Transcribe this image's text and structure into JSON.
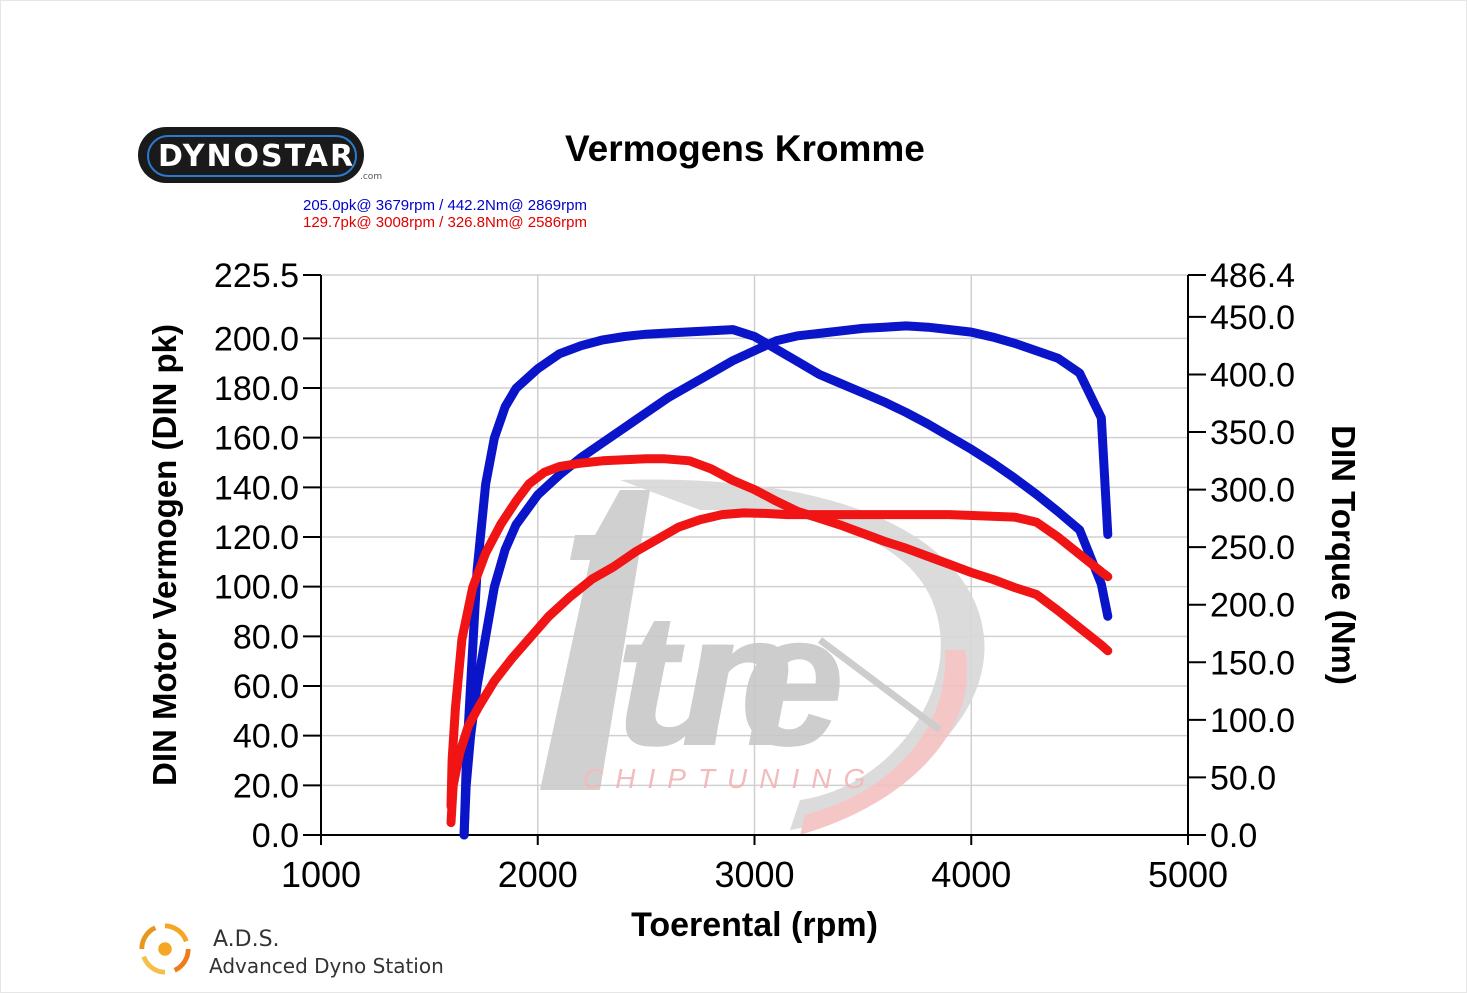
{
  "brand": {
    "logo_text": "DYNOSTAR",
    "logo_suffix": ".com"
  },
  "title": "Vermogens Kromme",
  "peaks": {
    "blue": "205.0pk@ 3679rpm / 442.2Nm@ 2869rpm",
    "red": "129.7pk@ 3008rpm / 326.8Nm@ 2586rpm"
  },
  "watermark": {
    "text": "tune",
    "sub": "CHIPTUNING"
  },
  "footer": {
    "title": "A.D.S.",
    "subtitle": "Advanced Dyno Station"
  },
  "colors": {
    "blue": "#0a14c8",
    "red": "#f01414",
    "grid": "#d0d0d0"
  },
  "chart_data": {
    "type": "line",
    "xlabel": "Toerental (rpm)",
    "ylabel": "DIN Motor Vermogen (DIN pk)",
    "y2label": "DIN Torque (Nm)",
    "xlim": [
      1000,
      5000
    ],
    "ylim": [
      0,
      225.5
    ],
    "y2lim": [
      0,
      486.4
    ],
    "x_ticks": [
      "1000",
      "2000",
      "3000",
      "4000",
      "5000"
    ],
    "y_ticks": [
      "0.0",
      "20.0",
      "40.0",
      "60.0",
      "80.0",
      "100.0",
      "120.0",
      "140.0",
      "160.0",
      "180.0",
      "200.0",
      "225.5"
    ],
    "y_tick_values": [
      0,
      20,
      40,
      60,
      80,
      100,
      120,
      140,
      160,
      180,
      200,
      225.5
    ],
    "y2_ticks": [
      "0.0",
      "50.0",
      "100.0",
      "150.0",
      "200.0",
      "250.0",
      "300.0",
      "350.0",
      "400.0",
      "450.0",
      "486.4"
    ],
    "y2_tick_values": [
      0,
      50,
      100,
      150,
      200,
      250,
      300,
      350,
      400,
      450,
      486.4
    ],
    "grid": true,
    "series": [
      {
        "color": "blue",
        "axis": "y",
        "x": [
          1660,
          1670,
          1690,
          1720,
          1760,
          1800,
          1850,
          1900,
          2000,
          2100,
          2200,
          2300,
          2400,
          2500,
          2600,
          2700,
          2800,
          2900,
          3000,
          3100,
          3200,
          3300,
          3400,
          3500,
          3600,
          3700,
          3800,
          3900,
          4000,
          4100,
          4200,
          4300,
          4400,
          4500,
          4600,
          4630
        ],
        "y": [
          0,
          20,
          40,
          60,
          80,
          100,
          115,
          125,
          137,
          145,
          152,
          158,
          164,
          170,
          176,
          181,
          186,
          191,
          195,
          199,
          201,
          202,
          203,
          204,
          204.5,
          205,
          204.5,
          203.5,
          202.5,
          200.5,
          198,
          195,
          192,
          186,
          168,
          121
        ]
      },
      {
        "color": "blue",
        "axis": "y2",
        "x": [
          1660,
          1670,
          1690,
          1720,
          1760,
          1800,
          1850,
          1900,
          2000,
          2100,
          2200,
          2300,
          2400,
          2500,
          2600,
          2700,
          2800,
          2900,
          3000,
          3100,
          3200,
          3300,
          3400,
          3500,
          3600,
          3700,
          3800,
          3900,
          4000,
          4100,
          4200,
          4300,
          4400,
          4500,
          4600,
          4630
        ],
        "y": [
          0,
          60,
          130,
          230,
          305,
          345,
          372,
          388,
          405,
          418,
          425,
          430,
          433,
          435,
          436,
          437,
          438,
          439,
          433,
          422,
          411,
          400,
          392,
          384,
          376,
          367,
          357,
          346,
          335,
          323,
          310,
          296,
          281,
          265,
          218,
          190
        ]
      },
      {
        "color": "red",
        "axis": "y",
        "x": [
          1600,
          1610,
          1640,
          1680,
          1730,
          1800,
          1880,
          1960,
          2050,
          2150,
          2250,
          2350,
          2450,
          2550,
          2650,
          2750,
          2850,
          2950,
          3050,
          3150,
          3300,
          3450,
          3600,
          3750,
          3900,
          4050,
          4200,
          4300,
          4400,
          4500,
          4600,
          4630
        ],
        "y": [
          5,
          20,
          33,
          44,
          52,
          62,
          71,
          79,
          88,
          96,
          103,
          108,
          114,
          119,
          124,
          127,
          129,
          129.7,
          129.5,
          129,
          129,
          129,
          129,
          129,
          129,
          128.5,
          128,
          126,
          120,
          113,
          106,
          104
        ]
      },
      {
        "color": "red",
        "axis": "y2",
        "x": [
          1600,
          1605,
          1620,
          1650,
          1700,
          1760,
          1830,
          1900,
          1960,
          2030,
          2100,
          2200,
          2300,
          2400,
          2500,
          2586,
          2700,
          2800,
          2900,
          3000,
          3100,
          3200,
          3300,
          3400,
          3500,
          3600,
          3700,
          3800,
          3900,
          4000,
          4100,
          4200,
          4300,
          4400,
          4500,
          4600,
          4630
        ],
        "y": [
          25,
          65,
          110,
          170,
          215,
          245,
          270,
          290,
          305,
          315,
          320,
          323,
          325,
          326,
          326.8,
          326.8,
          325,
          318,
          308,
          300,
          290,
          281,
          275,
          269,
          262,
          255,
          249,
          242,
          235,
          228,
          222,
          215,
          209,
          195,
          180,
          165,
          160
        ]
      }
    ]
  }
}
